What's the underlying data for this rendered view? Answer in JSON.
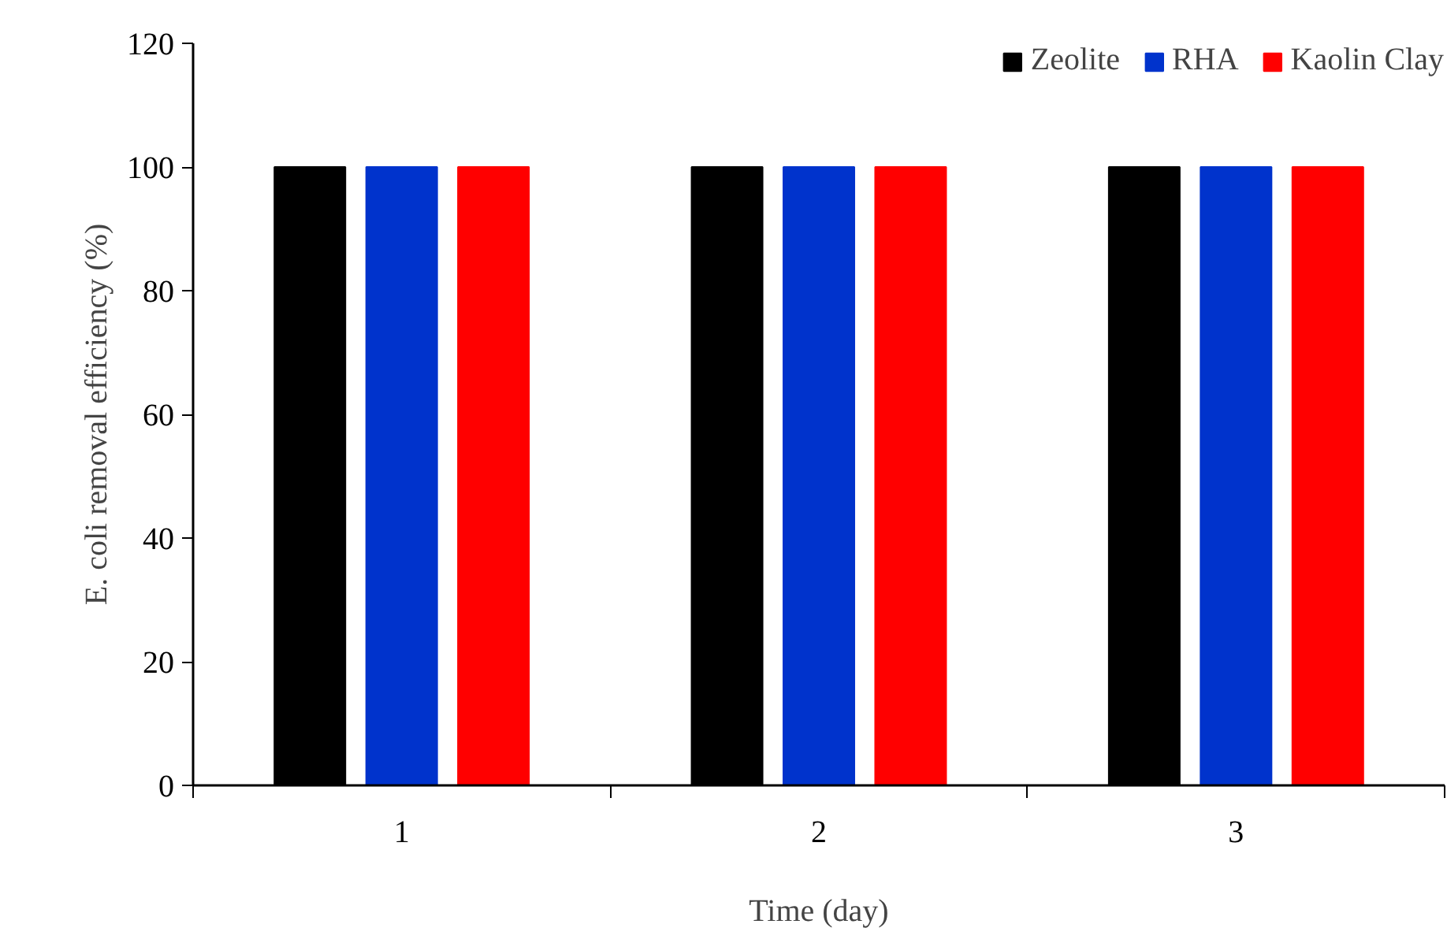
{
  "chart_data": {
    "type": "bar",
    "xlabel": "Time (day)",
    "ylabel": "E. coli removal efficiency (%)",
    "categories": [
      "1",
      "2",
      "3"
    ],
    "series": [
      {
        "name": "Zeolite",
        "color": "#000000",
        "values": [
          100,
          100,
          100
        ]
      },
      {
        "name": "RHA",
        "color": "#0033cc",
        "values": [
          100,
          100,
          100
        ]
      },
      {
        "name": "Kaolin Clay",
        "color": "#ff0000",
        "values": [
          100,
          100,
          100
        ]
      }
    ],
    "ylim": [
      0,
      120
    ],
    "yticks": [
      0,
      20,
      40,
      60,
      80,
      100,
      120
    ],
    "grid": false,
    "legend": "top right"
  }
}
